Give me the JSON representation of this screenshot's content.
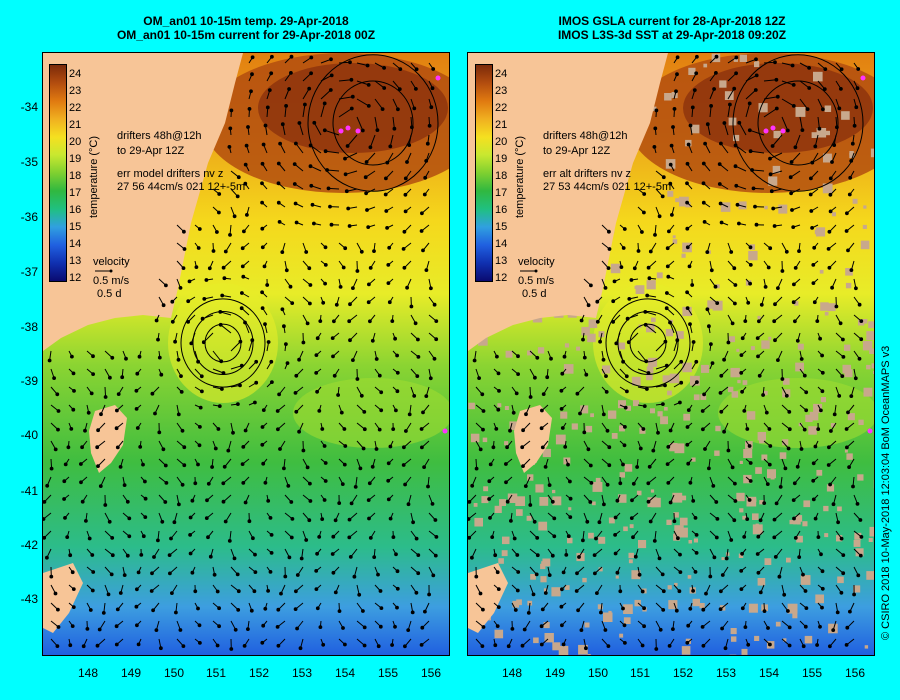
{
  "left_panel": {
    "title_line1": "OM_an01 10-15m temp. 29-Apr-2018",
    "title_line2": "OM_an01 10-15m current for 29-Apr-2018 00Z",
    "legend_drifters": "drifters 48h@12h",
    "legend_to": "to 29-Apr 12Z",
    "err_label": "err model drifters nv z",
    "err_values": "27 56 44cm/s 021 12+-5m",
    "velocity_label": "velocity",
    "velocity_scale": "0.5 m/s",
    "velocity_time": "0.5 d"
  },
  "right_panel": {
    "title_line1": "IMOS GSLA current for 28-Apr-2018 12Z",
    "title_line2": "IMOS L3S-3d SST at 29-Apr-2018 09:20Z",
    "legend_drifters": "drifters 48h@12h",
    "legend_to": "to 29-Apr 12Z",
    "err_label": "err alt drifters nv z",
    "err_values": "27 53 44cm/s 021 12+-5m",
    "velocity_label": "velocity",
    "velocity_scale": "0.5 m/s",
    "velocity_time": "0.5 d"
  },
  "colorbar": {
    "title": "temperature (°C)",
    "ticks": [
      "24",
      "23",
      "22",
      "21",
      "20",
      "19",
      "18",
      "17",
      "16",
      "15",
      "14",
      "13",
      "12"
    ],
    "colors": [
      "#7b2a0a",
      "#b34d0f",
      "#e07a10",
      "#f0b020",
      "#f5e020",
      "#c8e830",
      "#7fd030",
      "#30b840",
      "#20c080",
      "#30a0e0",
      "#2060e0",
      "#1030b0",
      "#0a0a70"
    ]
  },
  "axes": {
    "lat_labels": [
      "-34",
      "-35",
      "-36",
      "-37",
      "-38",
      "-39",
      "-40",
      "-41",
      "-42",
      "-43"
    ],
    "lon_labels": [
      "148",
      "149",
      "150",
      "151",
      "152",
      "153",
      "154",
      "155",
      "156"
    ]
  },
  "credit": "© CSIRO 2018   10-May-2018 12:03:04 BoM OceanMAPS v3",
  "colors": {
    "background": "#00ffff",
    "land": "#f7c597",
    "missing_data": "#c8a88c",
    "drifter": "#ff33ff"
  }
}
